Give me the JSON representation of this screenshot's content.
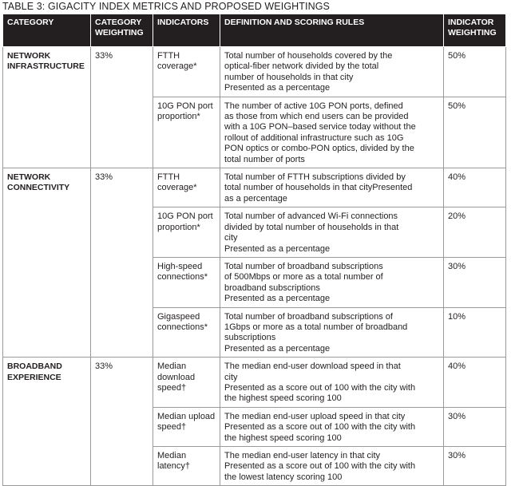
{
  "title": "TABLE 3: GIGACITY INDEX METRICS AND PROPOSED WEIGHTINGS",
  "table": {
    "headers": [
      "CATEGORY",
      "CATEGORY WEIGHTING",
      "INDICATORS",
      "DEFINITION AND SCORING RULES",
      "INDICATOR WEIGHTING"
    ],
    "groups": [
      {
        "category": "NETWORK INFRASTRUCTURE",
        "weighting": "33%",
        "indicators": [
          {
            "name": "FTTH coverage*",
            "definition": [
              "Total number of households covered by the",
              "optical-fiber network divided by the total",
              "number of households in that city",
              "Presented as a percentage"
            ],
            "weighting": "50%"
          },
          {
            "name": "10G PON port proportion*",
            "definition": [
              "The number of active 10G PON ports, defined",
              "as those from which end users can be provided",
              "with a 10G PON–based service today without the",
              "rollout of additional infrastructure such as 10G",
              "PON optics or combo-PON optics, divided by the",
              "total number of ports"
            ],
            "weighting": "50%"
          }
        ]
      },
      {
        "category": "NETWORK CONNECTIVITY",
        "weighting": "33%",
        "indicators": [
          {
            "name": "FTTH coverage*",
            "definition": [
              "Total number of FTTH subscriptions divided by",
              "total number of households in that cityPresented",
              "as a percentage"
            ],
            "weighting": "40%"
          },
          {
            "name": "10G PON port proportion*",
            "definition": [
              "Total number of advanced Wi-Fi connections",
              "divided by total number of households in that",
              "city",
              "Presented as a percentage"
            ],
            "weighting": "20%"
          },
          {
            "name": "High-speed connections*",
            "definition": [
              "Total number of broadband subscriptions",
              "of 500Mbps or more as a total number of",
              "broadband subscriptions",
              "Presented as a percentage"
            ],
            "weighting": "30%"
          },
          {
            "name": "Gigaspeed connections*",
            "definition": [
              "Total number of broadband subscriptions of",
              "1Gbps or more as a total number of broadband",
              "subscriptions",
              "Presented as a percentage"
            ],
            "weighting": "10%"
          }
        ]
      },
      {
        "category": "BROADBAND EXPERIENCE",
        "weighting": "33%",
        "indicators": [
          {
            "name": "Median download speed†",
            "definition": [
              "The median end-user download speed in that",
              "city",
              "Presented as a score out of 100 with the city with",
              "the highest speed scoring 100"
            ],
            "weighting": "40%"
          },
          {
            "name": "Median upload speed†",
            "definition": [
              "The median end-user upload speed in that city",
              "Presented as a score out of 100 with the city with",
              "the highest speed scoring 100"
            ],
            "weighting": "30%"
          },
          {
            "name": "Median latency†",
            "definition": [
              "The median end-user latency in that city",
              "Presented as a score out of 100 with the city with",
              "the lowest latency scoring 100"
            ],
            "weighting": "30%"
          }
        ]
      }
    ]
  }
}
